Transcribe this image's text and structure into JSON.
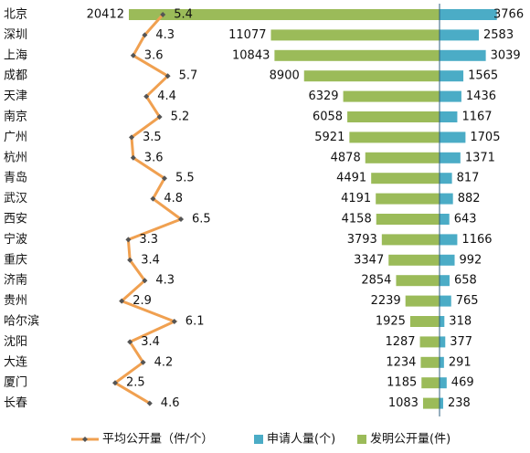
{
  "chart_data": {
    "type": "combo",
    "categories": [
      "北京",
      "深圳",
      "上海",
      "成都",
      "天津",
      "南京",
      "广州",
      "杭州",
      "青岛",
      "武汉",
      "西安",
      "宁波",
      "重庆",
      "济南",
      "贵州",
      "哈尔滨",
      "沈阳",
      "大连",
      "厦门",
      "长春"
    ],
    "series": [
      {
        "name": "平均公开量（件/个）",
        "type": "line",
        "color": "#f0a050",
        "values": [
          5.4,
          4.3,
          3.6,
          5.7,
          4.4,
          5.2,
          3.5,
          3.6,
          5.5,
          4.8,
          6.5,
          3.3,
          3.4,
          4.3,
          2.9,
          6.1,
          3.4,
          4.2,
          2.5,
          4.6
        ]
      },
      {
        "name": "申请人量(个)",
        "type": "bar-right",
        "color": "#4bacc6",
        "values": [
          3766,
          2583,
          3039,
          1565,
          1436,
          1167,
          1705,
          1371,
          817,
          882,
          643,
          1166,
          992,
          658,
          765,
          318,
          377,
          291,
          469,
          238
        ]
      },
      {
        "name": "发明公开量(件)",
        "type": "bar-left",
        "color": "#9bbb59",
        "values": [
          20412,
          11077,
          10843,
          8900,
          6329,
          6058,
          5921,
          4878,
          4491,
          4191,
          4158,
          3793,
          3347,
          2854,
          2239,
          1925,
          1287,
          1234,
          1185,
          1083
        ]
      }
    ]
  }
}
